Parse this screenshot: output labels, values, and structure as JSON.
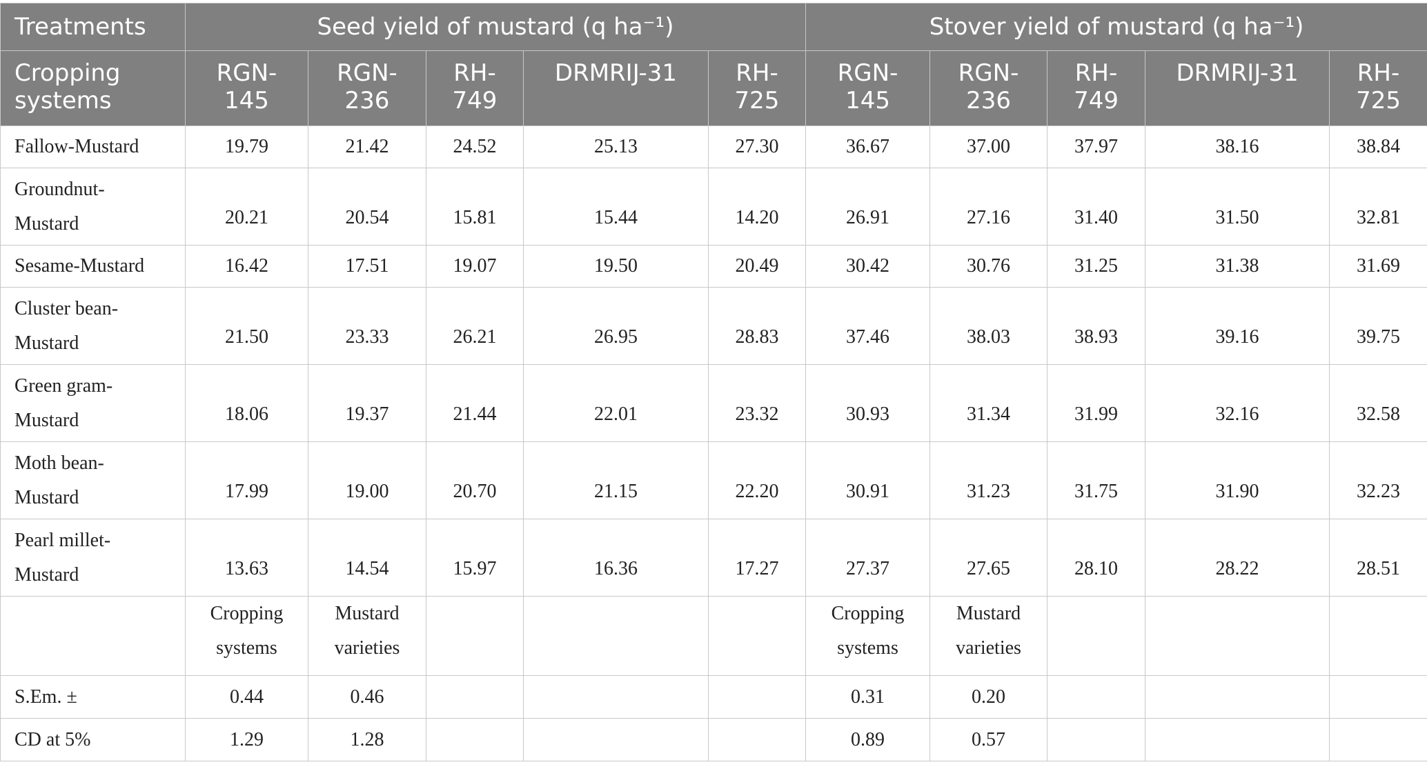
{
  "table": {
    "header": {
      "treatments": "Treatments",
      "groups": [
        "Seed yield of mustard (q ha⁻¹)",
        "Stover yield of mustard (q ha⁻¹)"
      ],
      "row_label": "Cropping systems",
      "varieties": [
        "RGN-145",
        "RGN-236",
        "RH-749",
        "DRMRIJ-31",
        "RH-725"
      ]
    },
    "rows": [
      {
        "label": "Fallow-Mustard",
        "seed": [
          "19.79",
          "21.42",
          "24.52",
          "25.13",
          "27.30"
        ],
        "stover": [
          "36.67",
          "37.00",
          "37.97",
          "38.16",
          "38.84"
        ]
      },
      {
        "label": "Groundnut-Mustard",
        "seed": [
          "20.21",
          "20.54",
          "15.81",
          "15.44",
          "14.20"
        ],
        "stover": [
          "26.91",
          "27.16",
          "31.40",
          "31.50",
          "32.81"
        ]
      },
      {
        "label": "Sesame-Mustard",
        "seed": [
          "16.42",
          "17.51",
          "19.07",
          "19.50",
          "20.49"
        ],
        "stover": [
          "30.42",
          "30.76",
          "31.25",
          "31.38",
          "31.69"
        ]
      },
      {
        "label": "Cluster bean-Mustard",
        "seed": [
          "21.50",
          "23.33",
          "26.21",
          "26.95",
          "28.83"
        ],
        "stover": [
          "37.46",
          "38.03",
          "38.93",
          "39.16",
          "39.75"
        ]
      },
      {
        "label": "Green gram-Mustard",
        "seed": [
          "18.06",
          "19.37",
          "21.44",
          "22.01",
          "23.32"
        ],
        "stover": [
          "30.93",
          "31.34",
          "31.99",
          "32.16",
          "32.58"
        ]
      },
      {
        "label": "Moth bean-Mustard",
        "seed": [
          "17.99",
          "19.00",
          "20.70",
          "21.15",
          "22.20"
        ],
        "stover": [
          "30.91",
          "31.23",
          "31.75",
          "31.90",
          "32.23"
        ]
      },
      {
        "label": "Pearl millet-Mustard",
        "seed": [
          "13.63",
          "14.54",
          "15.97",
          "16.36",
          "17.27"
        ],
        "stover": [
          "27.37",
          "27.65",
          "28.10",
          "28.22",
          "28.51"
        ]
      }
    ],
    "stats": {
      "factors": {
        "seed": [
          "Cropping systems",
          "Mustard varieties"
        ],
        "stover": [
          "Cropping systems",
          "Mustard varieties"
        ]
      },
      "rows": [
        {
          "label": "S.Em. ±",
          "seed": [
            "0.44",
            "0.46"
          ],
          "stover": [
            "0.31",
            "0.20"
          ]
        },
        {
          "label": "CD at 5%",
          "seed": [
            "1.29",
            "1.28"
          ],
          "stover": [
            "0.89",
            "0.57"
          ]
        }
      ]
    }
  }
}
